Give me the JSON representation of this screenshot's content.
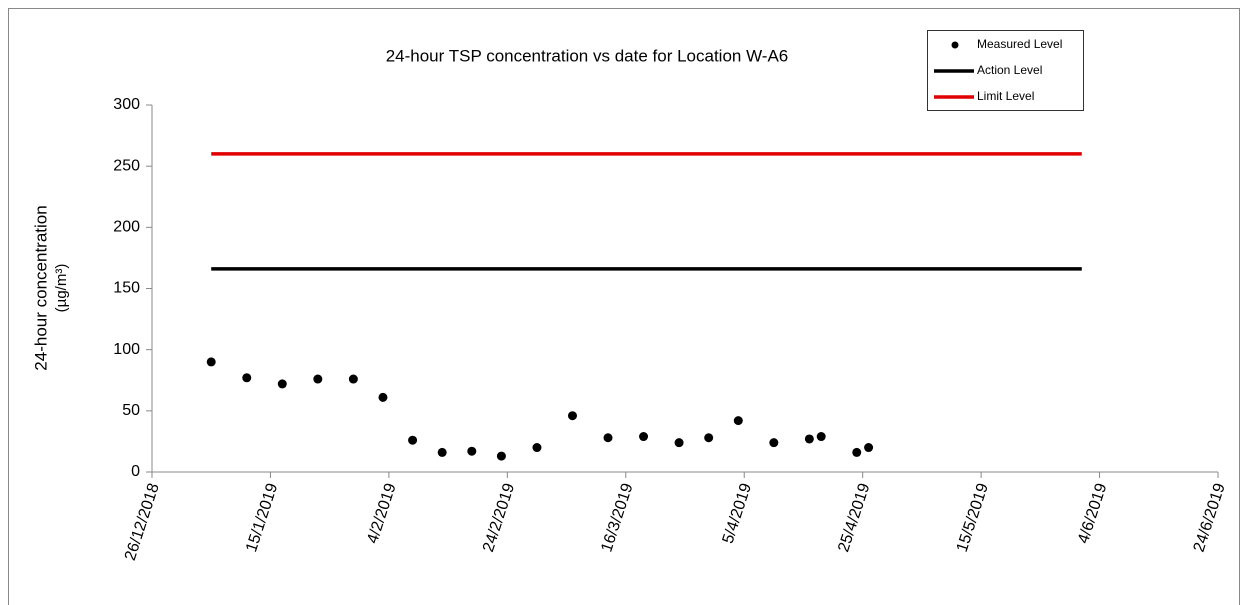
{
  "chart_data": {
    "type": "scatter",
    "title": "24-hour TSP concentration vs date for Location W-A6",
    "y_label": [
      "24-hour concentration",
      "(µg/m³)"
    ],
    "xlim": [
      "2018-12-26",
      "2019-06-24"
    ],
    "xticks": [
      {
        "value": "2018-12-26",
        "label": "26/12/2018"
      },
      {
        "value": "2019-01-15",
        "label": "15/1/2019"
      },
      {
        "value": "2019-02-04",
        "label": "4/2/2019"
      },
      {
        "value": "2019-02-24",
        "label": "24/2/2019"
      },
      {
        "value": "2019-03-16",
        "label": "16/3/2019"
      },
      {
        "value": "2019-04-05",
        "label": "5/4/2019"
      },
      {
        "value": "2019-04-25",
        "label": "25/4/2019"
      },
      {
        "value": "2019-05-15",
        "label": "15/5/2019"
      },
      {
        "value": "2019-06-04",
        "label": "4/6/2019"
      },
      {
        "value": "2019-06-24",
        "label": "24/6/2019"
      }
    ],
    "ylim": [
      0,
      300
    ],
    "yticks": [
      0,
      50,
      100,
      150,
      200,
      250,
      300
    ],
    "grid": false,
    "legend": "top-right",
    "series": [
      {
        "name": "Measured Level",
        "color": "#000000",
        "style": "marker",
        "x": [
          "2019-01-05",
          "2019-01-11",
          "2019-01-17",
          "2019-01-23",
          "2019-01-29",
          "2019-02-03",
          "2019-02-08",
          "2019-02-13",
          "2019-02-18",
          "2019-02-23",
          "2019-03-01",
          "2019-03-07",
          "2019-03-13",
          "2019-03-19",
          "2019-03-25",
          "2019-03-30",
          "2019-04-04",
          "2019-04-10",
          "2019-04-16",
          "2019-04-18",
          "2019-04-24",
          "2019-04-26"
        ],
        "values": [
          90,
          77,
          72,
          76,
          76,
          61,
          26,
          16,
          17,
          13,
          20,
          46,
          28,
          29,
          24,
          28,
          42,
          24,
          27,
          29,
          16,
          20
        ]
      },
      {
        "name": "Action Level",
        "color": "#000000",
        "style": "line",
        "x": [
          "2019-01-05",
          "2019-06-01"
        ],
        "values": [
          166,
          166
        ]
      },
      {
        "name": "Limit Level",
        "color": "#e00000",
        "style": "line",
        "x": [
          "2019-01-05",
          "2019-06-01"
        ],
        "values": [
          260,
          260
        ]
      }
    ]
  }
}
